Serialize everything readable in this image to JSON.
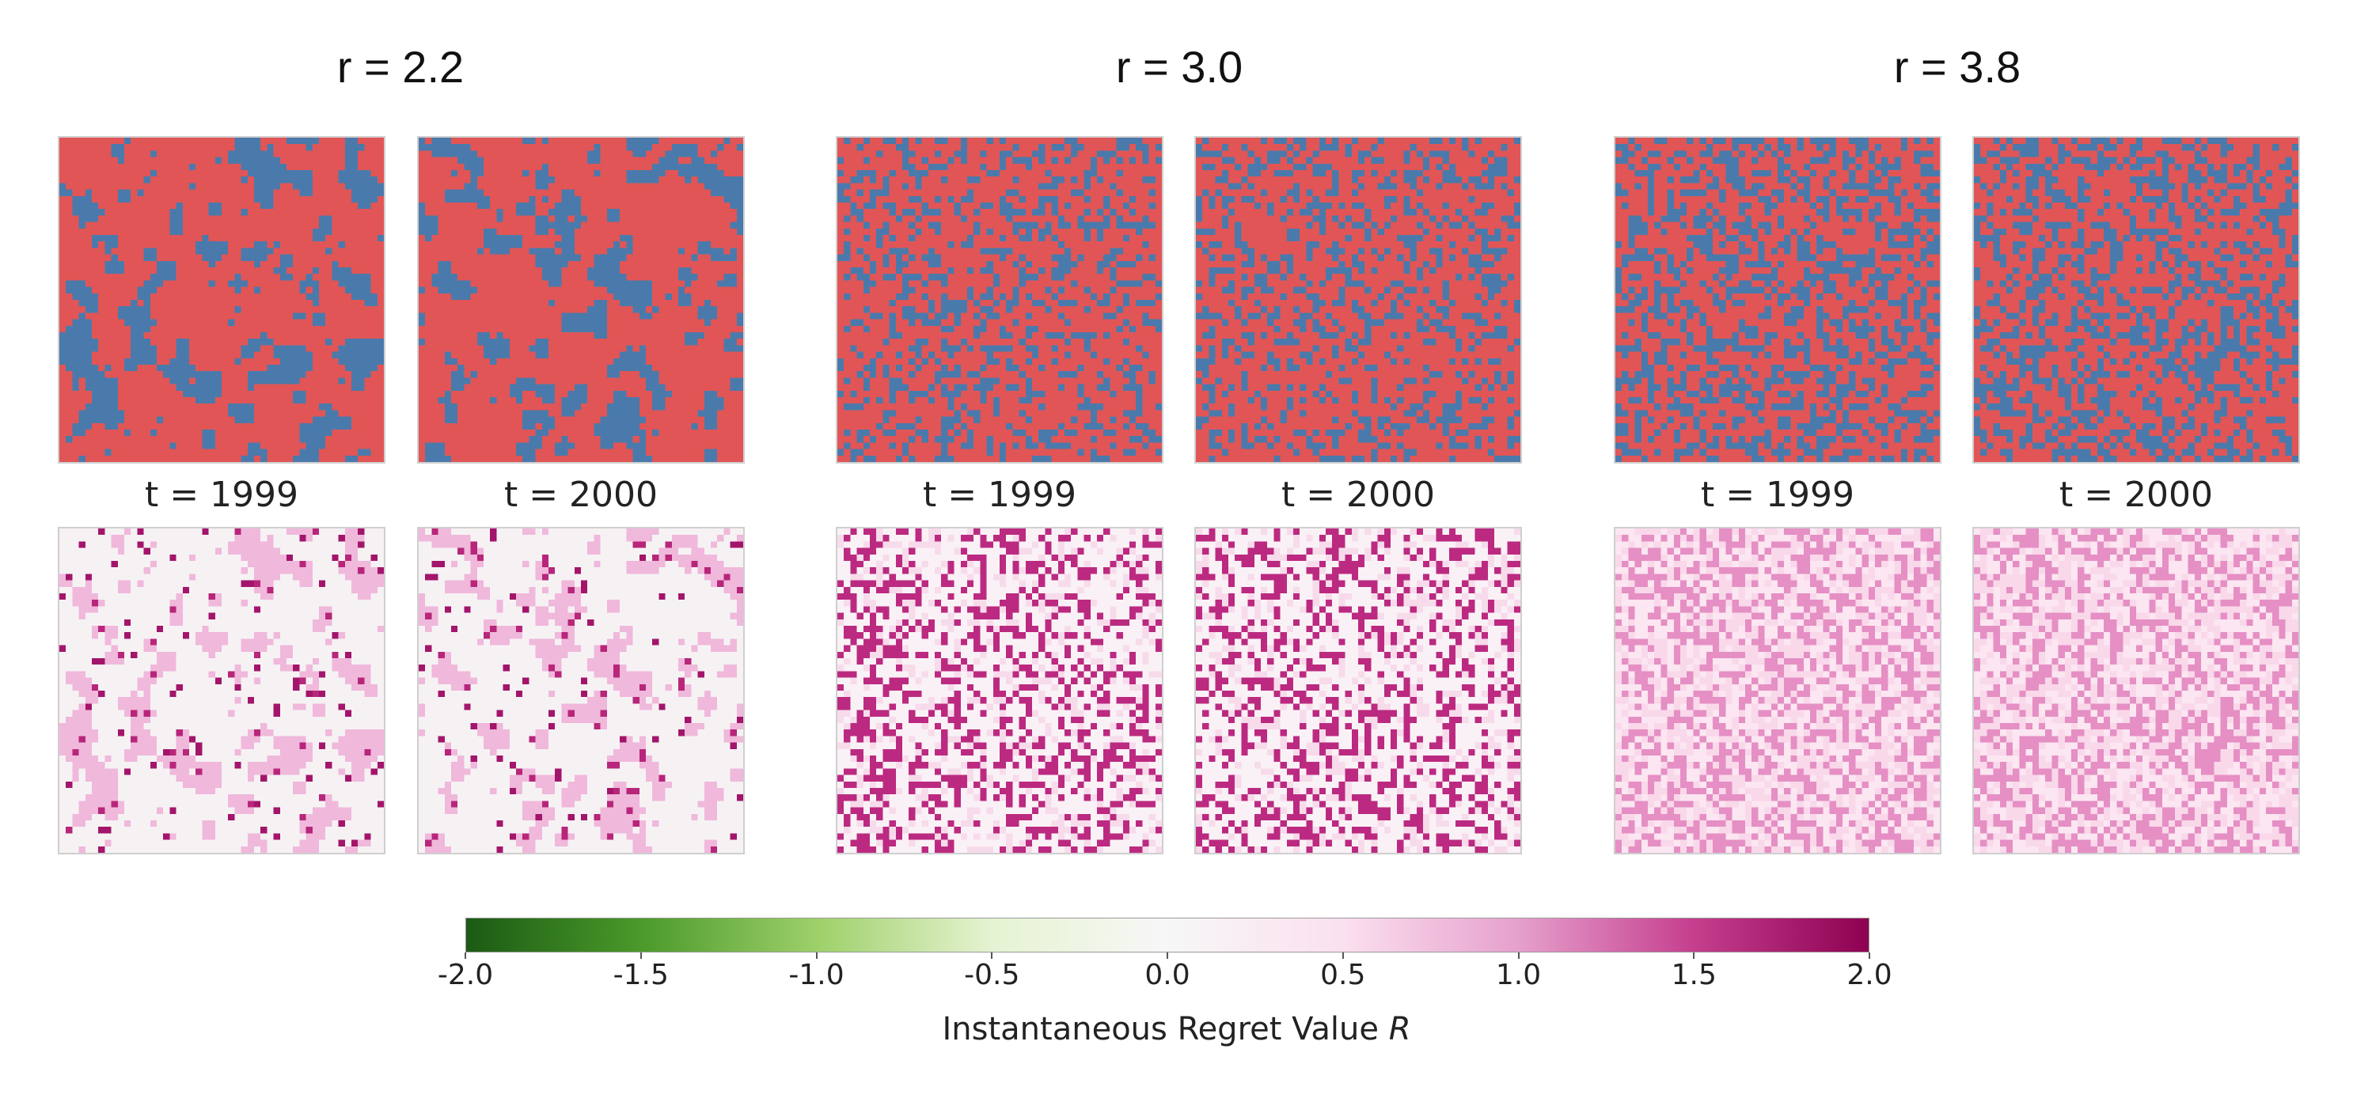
{
  "chart_data": {
    "type": "heatmap",
    "groups": [
      {
        "title": "r = 2.2",
        "r": 2.2,
        "pattern": "clustered",
        "blue_fraction": 0.35
      },
      {
        "title": "r = 3.0",
        "r": 3.0,
        "pattern": "scattered",
        "blue_fraction": 0.3
      },
      {
        "title": "r = 3.8",
        "r": 3.8,
        "pattern": "scattered",
        "blue_fraction": 0.4
      }
    ],
    "time_labels": [
      "t = 1999",
      "t = 2000"
    ],
    "times": [
      1999,
      2000
    ],
    "grid_size": 50,
    "strategy_colors": {
      "blue": "#4a7aab",
      "red": "#e15556"
    },
    "colorbar": {
      "colormap": "PiYG",
      "vmin": -2.0,
      "vmax": 2.0,
      "ticks": [
        "-2.0",
        "-1.5",
        "-1.0",
        "-0.5",
        "0.0",
        "0.5",
        "1.0",
        "1.5",
        "2.0"
      ],
      "label_text": "Instantaneous Regret Value ",
      "label_var": "R",
      "stops": [
        "#1b5a14",
        "#4b9a2a",
        "#9ed069",
        "#e6f3d2",
        "#f7f7f7",
        "#fbe0ef",
        "#e6a0cd",
        "#c53f8e",
        "#8e0152"
      ]
    }
  }
}
